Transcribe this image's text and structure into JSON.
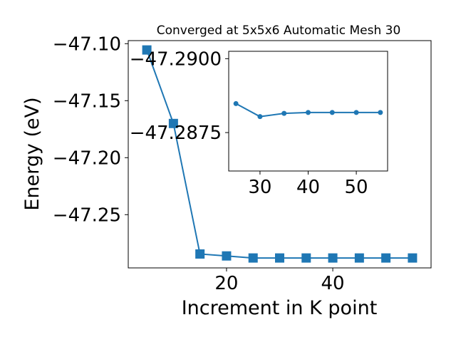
{
  "chart_data": {
    "type": "line",
    "title": "Converged at 5x5x6 Automatic Mesh 30",
    "xlabel": "Increment in K point",
    "ylabel": "Energy (eV)",
    "color": "#1f77b4",
    "main": {
      "x": [
        5,
        10,
        15,
        20,
        25,
        30,
        35,
        40,
        45,
        50,
        55
      ],
      "y": [
        -47.1055,
        -47.17,
        -47.2845,
        -47.2862,
        -47.288,
        -47.288,
        -47.288,
        -47.288,
        -47.288,
        -47.288,
        -47.288
      ],
      "xlim": [
        1.5,
        58.5
      ],
      "ylim": [
        -47.2967,
        -47.0973
      ],
      "xticks": [
        20,
        40
      ],
      "yticks": [
        -47.1,
        -47.15,
        -47.2,
        -47.25
      ],
      "xtick_labels": [
        "20",
        "40"
      ],
      "ytick_labels": [
        "−47.10",
        "−47.15",
        "−47.20",
        "−47.25"
      ],
      "marker": "square"
    },
    "inset": {
      "x": [
        25,
        30,
        35,
        40,
        45,
        50,
        55
      ],
      "y": [
        -47.28848,
        -47.28804,
        -47.28815,
        -47.28818,
        -47.28818,
        -47.28818,
        -47.28818
      ],
      "xlim": [
        23.5,
        56.5
      ],
      "ylim": [
        -47.2862,
        -47.29025
      ],
      "xticks": [
        30,
        40,
        50
      ],
      "yticks": [
        -47.29,
        -47.2875
      ],
      "xtick_labels": [
        "30",
        "40",
        "50"
      ],
      "ytick_labels": [
        "−47.2900",
        "−47.2875"
      ],
      "marker": "circle"
    }
  }
}
